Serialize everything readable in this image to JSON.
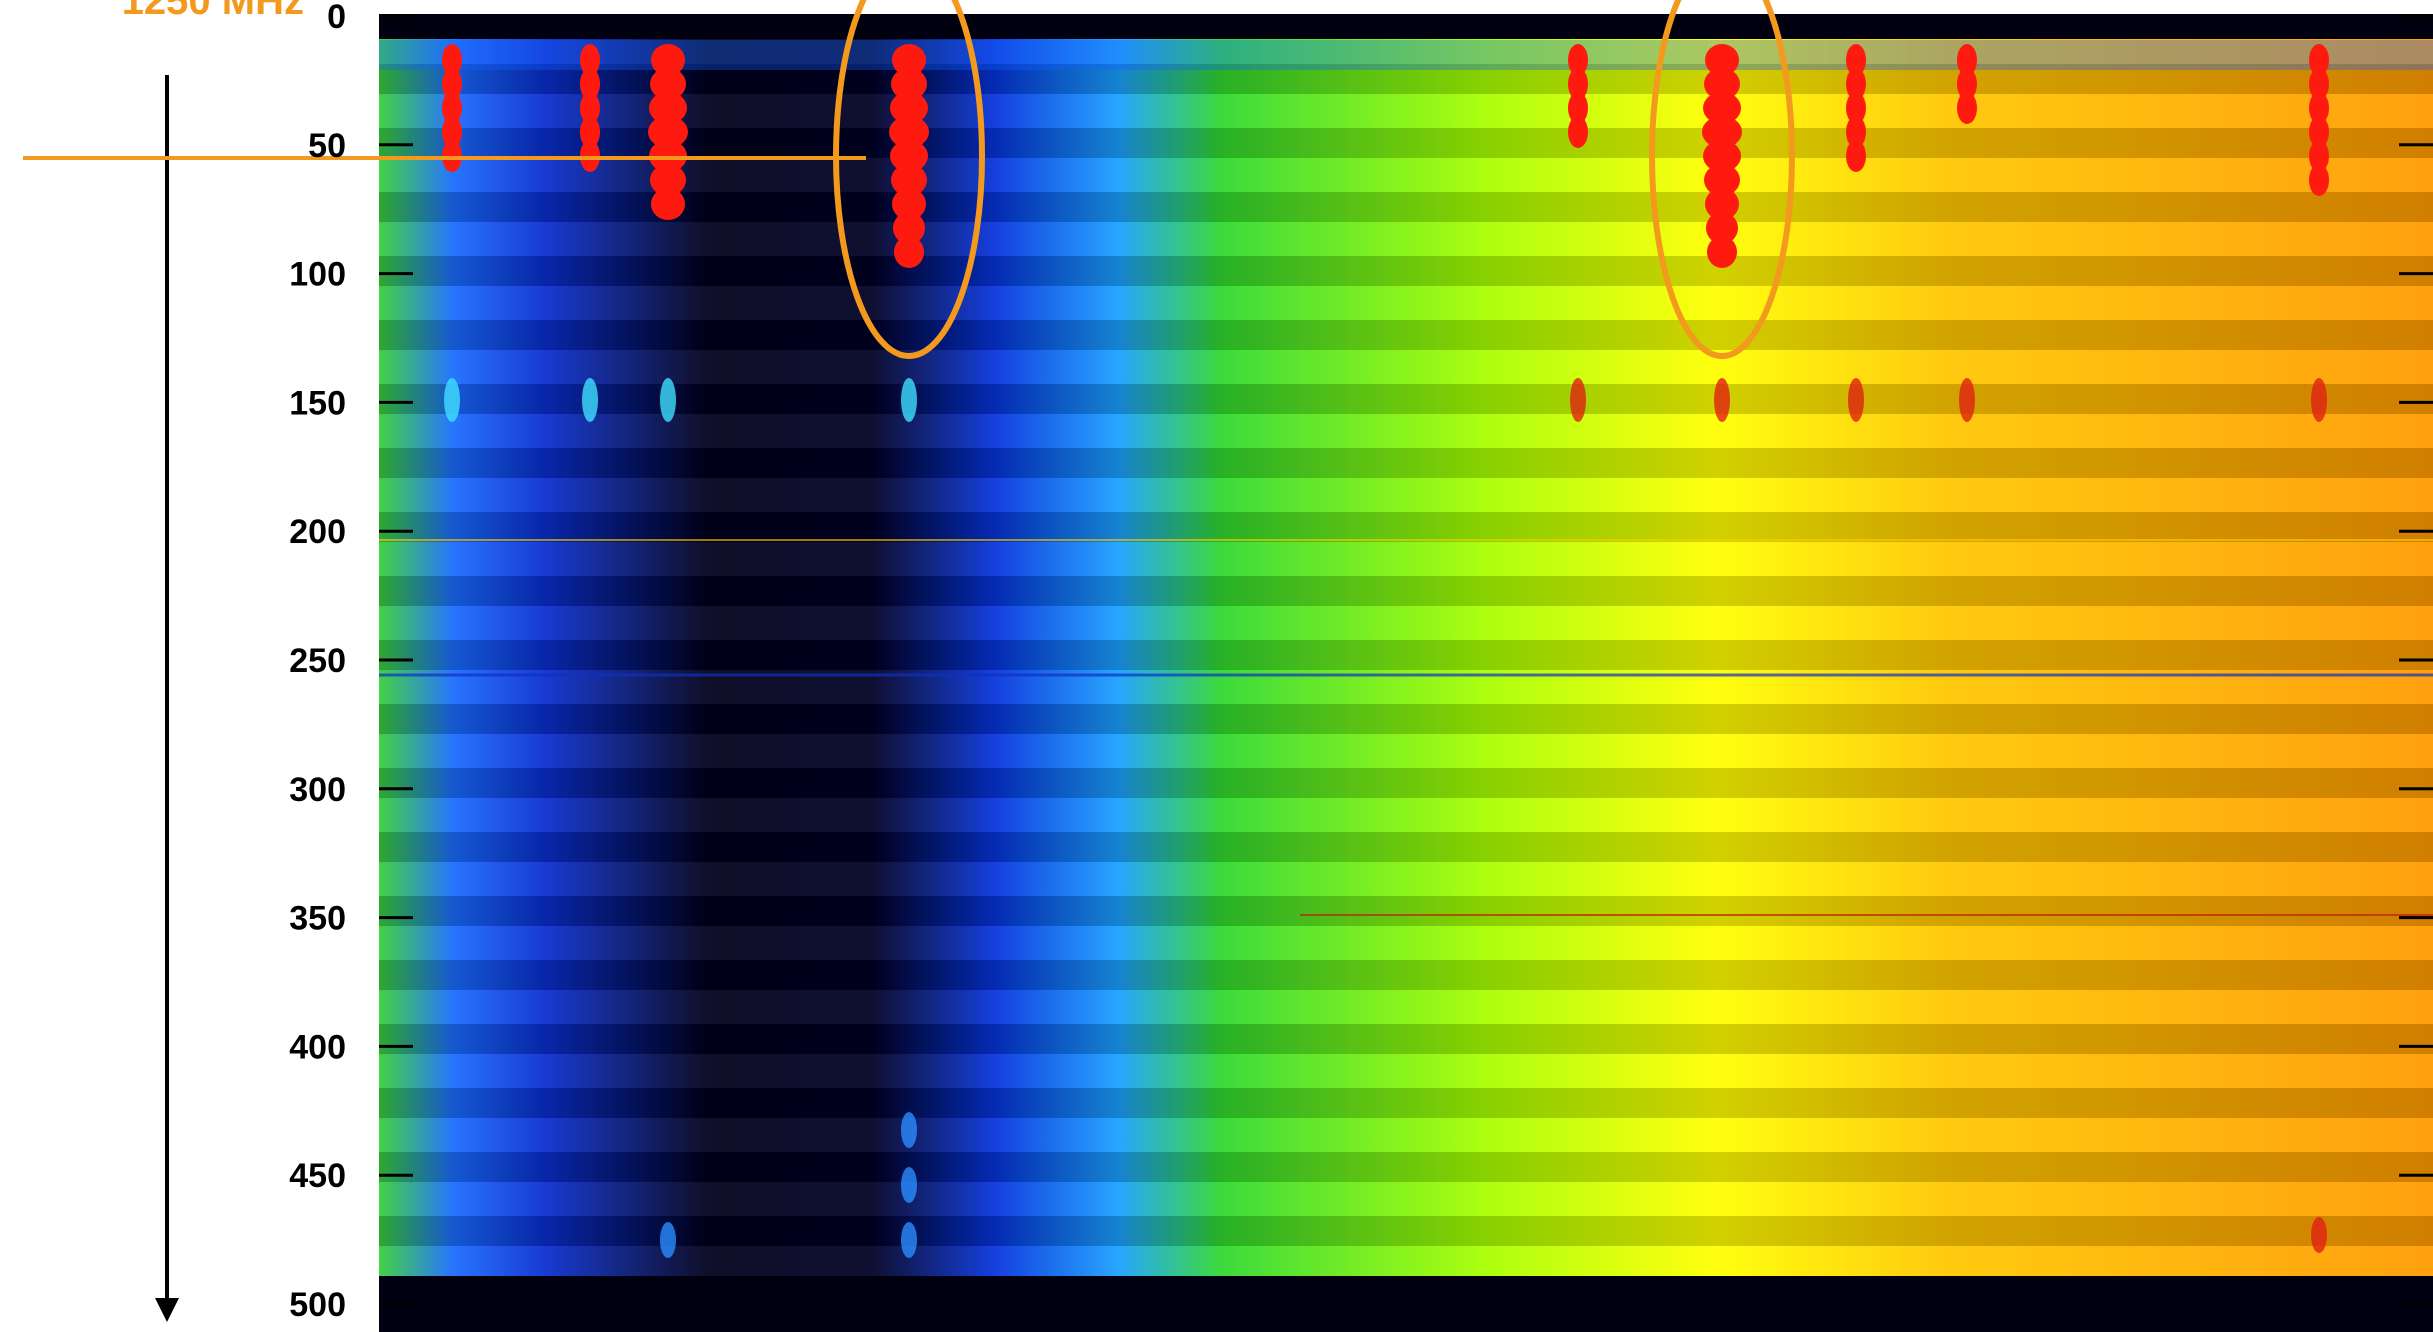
{
  "chart_data": {
    "type": "heatmap",
    "annotation": "1250 MHz",
    "ylim": [
      0,
      500
    ],
    "yticks": [
      0,
      50,
      100,
      150,
      200,
      250,
      300,
      350,
      400,
      450,
      500
    ],
    "inverted_y": true
  }
}
